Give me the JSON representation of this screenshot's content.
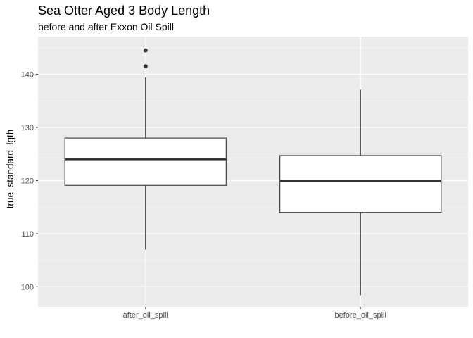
{
  "chart_data": {
    "type": "boxplot",
    "title": "Sea Otter Aged 3 Body Length",
    "subtitle": "before and after Exxon Oil Spill",
    "xlabel": "",
    "ylabel": "true_standard_lgth",
    "categories": [
      "after_oil_spill",
      "before_oil_spill"
    ],
    "yticks": [
      100,
      110,
      120,
      130,
      140
    ],
    "ylim": [
      96.2,
      147.1
    ],
    "grid": true,
    "boxes": [
      {
        "category": "after_oil_spill",
        "whisker_low": 107,
        "q1": 119.1,
        "median": 124,
        "q3": 128,
        "whisker_high": 139.4,
        "outliers": [
          141.5,
          144.5
        ]
      },
      {
        "category": "before_oil_spill",
        "whisker_low": 98.4,
        "q1": 114,
        "median": 119.9,
        "q3": 124.7,
        "whisker_high": 137.1,
        "outliers": []
      }
    ],
    "colors": {
      "panel": "#ebebeb",
      "grid_major": "#ffffff",
      "grid_minor": "#f5f5f5",
      "box_fill": "#ffffff",
      "box_line": "#333333"
    }
  }
}
